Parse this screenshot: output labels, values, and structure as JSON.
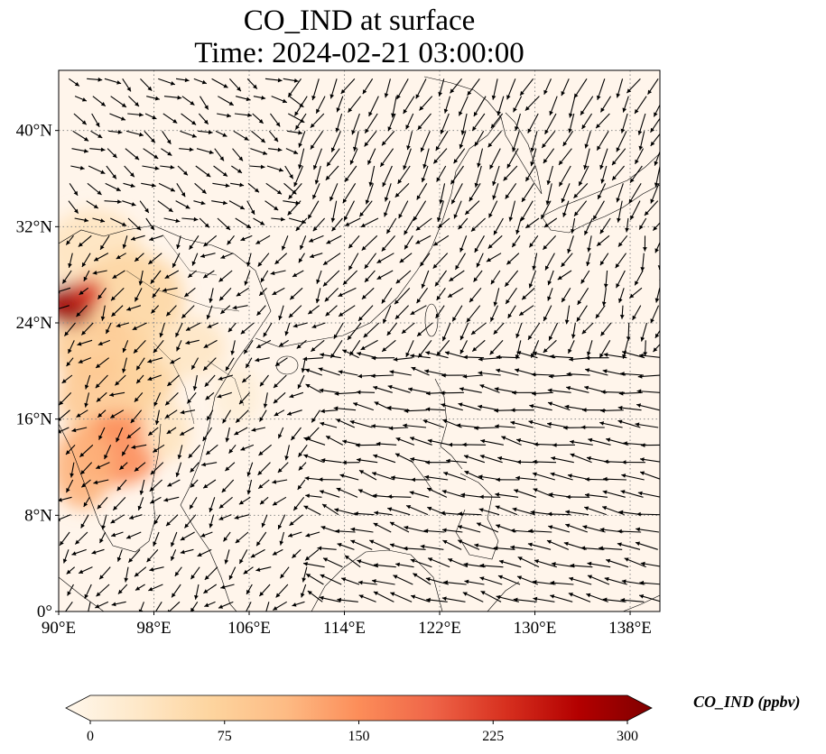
{
  "title": {
    "line1": "CO_IND at surface",
    "line2": "Time: 2024-02-21 03:00:00"
  },
  "map": {
    "projection": "PlateCarree",
    "lon_range": [
      90,
      140.5
    ],
    "lat_range": [
      0,
      45
    ],
    "background_color": "#fff5eb",
    "land_outline_color": "#000000",
    "gridline_style": "dotted gray",
    "lon_ticks": [
      {
        "value": 90,
        "label": "90°E"
      },
      {
        "value": 98,
        "label": "98°E"
      },
      {
        "value": 106,
        "label": "106°E"
      },
      {
        "value": 114,
        "label": "114°E"
      },
      {
        "value": 122,
        "label": "122°E"
      },
      {
        "value": 130,
        "label": "130°E"
      },
      {
        "value": 138,
        "label": "138°E"
      }
    ],
    "lat_ticks": [
      {
        "value": 0,
        "label": "0°"
      },
      {
        "value": 8,
        "label": "8°N"
      },
      {
        "value": 16,
        "label": "16°N"
      },
      {
        "value": 24,
        "label": "24°N"
      },
      {
        "value": 32,
        "label": "32°N"
      },
      {
        "value": 40,
        "label": "40°N"
      }
    ],
    "concentration_blobs": [
      {
        "lon": 93.0,
        "lat": 30.0,
        "rlon": 4.0,
        "rlat": 3.5,
        "value": 45
      },
      {
        "lon": 96.0,
        "lat": 26.0,
        "rlon": 4.5,
        "rlat": 4.0,
        "value": 70
      },
      {
        "lon": 93.0,
        "lat": 22.0,
        "rlon": 3.5,
        "rlat": 3.0,
        "value": 85
      },
      {
        "lon": 94.0,
        "lat": 18.0,
        "rlon": 4.0,
        "rlat": 3.5,
        "value": 90
      },
      {
        "lon": 95.0,
        "lat": 13.5,
        "rlon": 3.5,
        "rlat": 3.0,
        "value": 150
      },
      {
        "lon": 92.0,
        "lat": 12.0,
        "rlon": 2.5,
        "rlat": 3.5,
        "value": 120
      },
      {
        "lon": 97.5,
        "lat": 20.0,
        "rlon": 2.5,
        "rlat": 3.0,
        "value": 75
      },
      {
        "lon": 91.0,
        "lat": 25.5,
        "rlon": 2.0,
        "rlat": 1.8,
        "value": 280
      },
      {
        "lon": 92.5,
        "lat": 26.5,
        "rlon": 1.3,
        "rlat": 1.2,
        "value": 220
      },
      {
        "lon": 101.0,
        "lat": 22.0,
        "rlon": 3.0,
        "rlat": 2.5,
        "value": 40
      },
      {
        "lon": 99.0,
        "lat": 15.0,
        "rlon": 2.0,
        "rlat": 2.5,
        "value": 45
      },
      {
        "lon": 105.0,
        "lat": 18.0,
        "rlon": 2.0,
        "rlat": 2.5,
        "value": 22
      }
    ],
    "wind_field": {
      "description": "surface wind vectors",
      "arrow_color": "#000000"
    }
  },
  "colorbar": {
    "label": "CO_IND (ppbv)",
    "min": 0,
    "max": 300,
    "extend": "both",
    "cmap": "OrRd",
    "ticks": [
      {
        "value": 0,
        "label": "0"
      },
      {
        "value": 75,
        "label": "75"
      },
      {
        "value": 150,
        "label": "150"
      },
      {
        "value": 225,
        "label": "225"
      },
      {
        "value": 300,
        "label": "300"
      }
    ],
    "stops": [
      "#fff7ec",
      "#fee8c8",
      "#fdd49e",
      "#fdbb84",
      "#fc8d59",
      "#ef6548",
      "#d7301f",
      "#b30000",
      "#7f0000"
    ]
  }
}
